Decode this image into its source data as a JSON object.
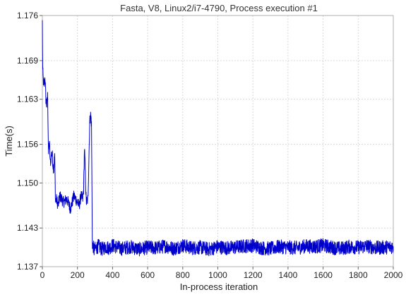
{
  "chart_data": {
    "type": "line",
    "title": "Fasta, V8, Linux2/i7-4790, Process execution #1",
    "xlabel": "In-process iteration",
    "ylabel": "Time(s)",
    "xlim": [
      0,
      2000
    ],
    "ylim": [
      1.137,
      1.176
    ],
    "x_ticks": [
      0,
      200,
      400,
      600,
      800,
      1000,
      1200,
      1400,
      1600,
      1800,
      2000
    ],
    "y_ticks": [
      1.137,
      1.143,
      1.15,
      1.156,
      1.163,
      1.169,
      1.176
    ],
    "y_tick_labels": [
      "1.137",
      "1.143",
      "1.150",
      "1.156",
      "1.163",
      "1.169",
      "1.176"
    ],
    "grid": true,
    "color": "#0000cc",
    "series": [
      {
        "x": [
          0,
          2,
          5,
          10,
          15,
          20,
          25,
          30,
          35,
          40,
          45,
          50,
          55,
          60,
          65,
          70,
          75,
          80,
          90,
          100,
          120,
          140,
          160,
          180,
          200,
          210,
          220,
          230,
          235,
          240,
          250,
          260,
          270,
          275,
          278,
          280,
          285,
          290,
          295,
          300,
          320,
          340,
          360,
          380,
          400,
          450,
          500,
          550,
          600,
          650,
          700,
          750,
          800,
          850,
          900,
          950,
          1000,
          1050,
          1100,
          1150,
          1200,
          1250,
          1300,
          1350,
          1400,
          1450,
          1500,
          1550,
          1600,
          1650,
          1700,
          1750,
          1800,
          1850,
          1900,
          1950,
          2000
        ],
        "y": [
          1.175,
          1.1675,
          1.166,
          1.165,
          1.1665,
          1.163,
          1.162,
          1.1635,
          1.1545,
          1.1565,
          1.153,
          1.154,
          1.155,
          1.153,
          1.152,
          1.1545,
          1.147,
          1.1475,
          1.1465,
          1.148,
          1.147,
          1.1475,
          1.146,
          1.148,
          1.147,
          1.1465,
          1.148,
          1.1475,
          1.149,
          1.1555,
          1.147,
          1.1475,
          1.1595,
          1.1605,
          1.16,
          1.159,
          1.1405,
          1.14,
          1.1395,
          1.1398,
          1.1402,
          1.1397,
          1.1401,
          1.1399,
          1.1403,
          1.1398,
          1.1401,
          1.1397,
          1.14,
          1.1399,
          1.1402,
          1.1398,
          1.1403,
          1.1399,
          1.14,
          1.1397,
          1.1401,
          1.1399,
          1.14,
          1.1402,
          1.1403,
          1.1399,
          1.1398,
          1.1401,
          1.14,
          1.1399,
          1.1402,
          1.1401,
          1.1403,
          1.14,
          1.1398,
          1.1401,
          1.14,
          1.1402,
          1.1399,
          1.14,
          1.1401
        ]
      }
    ]
  }
}
